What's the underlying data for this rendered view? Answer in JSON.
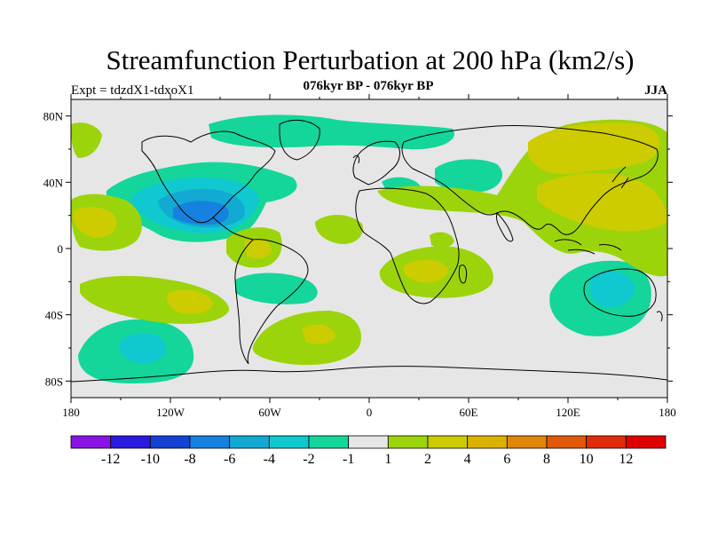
{
  "title": "Streamfunction Perturbation at 200 hPa (km2/s)",
  "subtitle": "076kyr BP - 076kyr BP",
  "experiment": "Expt = tdzdX1-tdxoX1",
  "season": "JJA",
  "lat_labels": [
    "80N",
    "40N",
    "0",
    "40S",
    "80S"
  ],
  "lon_labels": [
    "180",
    "120W",
    "60W",
    "0",
    "60E",
    "120E",
    "180"
  ],
  "colorbar": {
    "labels": [
      "-12",
      "-10",
      "-8",
      "-6",
      "-4",
      "-2",
      "-1",
      "1",
      "2",
      "4",
      "6",
      "8",
      "10",
      "12"
    ],
    "colors": [
      "#8a14e6",
      "#2a1adf",
      "#1442d4",
      "#1582df",
      "#12aad2",
      "#10c8cf",
      "#14d69a",
      "#e6e6e6",
      "#9cd40c",
      "#cccc00",
      "#dcb200",
      "#e0860a",
      "#e05808",
      "#e02c0a",
      "#e00000"
    ]
  },
  "colors": {
    "neutral": "#e6e6e6",
    "pos_light": "#9cd40c",
    "pos_mid": "#cccc00",
    "neg_light": "#14d69a",
    "neg_mid": "#10c8cf",
    "neg_dark": "#12aad2",
    "neg_deep": "#1582df"
  }
}
